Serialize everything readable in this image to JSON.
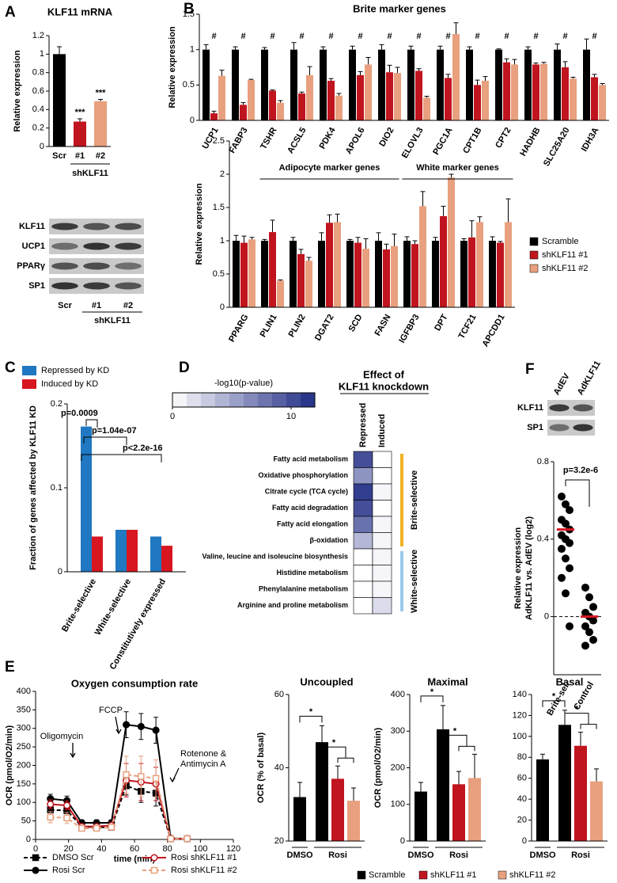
{
  "chart_data": [
    {
      "type": "bar",
      "panel": "A",
      "title": "KLF11 mRNA",
      "ylabel": "Relative expression",
      "categories": [
        "Scr",
        "#1",
        "#2"
      ],
      "values": [
        1.0,
        0.27,
        0.49
      ],
      "errors": [
        0.08,
        0.03,
        0.02
      ],
      "colors": [
        "#000000",
        "#c0141f",
        "#e8a07e"
      ],
      "ylim": [
        0,
        1.2
      ],
      "yticks": [
        0,
        0.2,
        0.4,
        0.6,
        0.8,
        1,
        1.2
      ],
      "sig_label": "***",
      "group_label": "shKLF11"
    },
    {
      "type": "bar",
      "panel": "B",
      "title": "Brite marker genes",
      "ylabel": "Relative expression",
      "categories": [
        "UCP1",
        "FABP3",
        "TSHR",
        "ACSL5",
        "PDK4",
        "APOL6",
        "DIO2",
        "ELOVL3",
        "PGC1A",
        "CPT1B",
        "CPT2",
        "HADHB",
        "SLC25A20",
        "IDH3A"
      ],
      "series": [
        {
          "color": "#000000",
          "values": [
            1,
            1,
            1,
            1,
            1,
            1,
            1,
            1,
            1,
            1,
            1,
            1,
            1,
            1
          ],
          "errors": [
            0.07,
            0.04,
            0.03,
            0.1,
            0.04,
            0.05,
            0.07,
            0.05,
            0.05,
            0.04,
            0.01,
            0.04,
            0.08,
            0.15
          ]
        },
        {
          "color": "#c0141f",
          "values": [
            0.1,
            0.22,
            0.42,
            0.38,
            0.56,
            0.64,
            0.68,
            0.7,
            0.6,
            0.5,
            0.82,
            0.79,
            0.75,
            0.61
          ],
          "errors": [
            0.03,
            0.03,
            0.01,
            0.02,
            0.03,
            0.05,
            0.1,
            0.03,
            0.05,
            0.07,
            0.05,
            0.02,
            0.08,
            0.04
          ]
        },
        {
          "color": "#e8a07e",
          "values": [
            0.63,
            0.57,
            0.25,
            0.64,
            0.35,
            0.79,
            0.67,
            0.32,
            1.22,
            0.56,
            0.79,
            0.8,
            0.59,
            0.5
          ],
          "errors": [
            0.08,
            0.01,
            0.03,
            0.12,
            0.03,
            0.1,
            0.08,
            0.02,
            0.16,
            0.06,
            0.07,
            0.02,
            0.02,
            0.02
          ]
        }
      ],
      "ylim": [
        0,
        1.5
      ],
      "yticks": [
        0,
        0.5,
        1,
        1.5
      ],
      "sig_label": "#"
    },
    {
      "type": "bar",
      "ylabel": "Relative expression",
      "categories": [
        "PPARG",
        "PLIN1",
        "PLIN2",
        "DGAT2",
        "SCD",
        "FASN",
        "IGFBP3",
        "DPT",
        "TCF21",
        "APCDD1"
      ],
      "series": [
        {
          "name": "Scramble",
          "color": "#000000",
          "values": [
            1,
            1,
            1,
            1,
            1,
            1,
            1,
            1,
            1,
            1
          ],
          "errors": [
            0.08,
            0.02,
            0.05,
            0.12,
            0.02,
            0.12,
            0.06,
            0.05,
            0.03,
            0.06
          ]
        },
        {
          "name": "shKLF11 #1",
          "color": "#c0141f",
          "values": [
            0.97,
            1.13,
            0.8,
            1.27,
            0.97,
            0.87,
            0.95,
            1.37,
            1.05,
            0.97
          ],
          "errors": [
            0.1,
            0.18,
            0.07,
            0.12,
            0.08,
            0.08,
            0.05,
            0.15,
            0.25,
            0.02
          ]
        },
        {
          "name": "shKLF11 #2",
          "color": "#e8a07e",
          "values": [
            1.02,
            0.4,
            0.7,
            1.28,
            0.88,
            0.92,
            1.52,
            1.95,
            1.28,
            1.28
          ],
          "errors": [
            0.03,
            0.01,
            0.05,
            0.12,
            0.15,
            0.18,
            0.22,
            0.05,
            0.08,
            0.35
          ]
        }
      ],
      "ylim": [
        0,
        2.5
      ],
      "yticks": [
        0,
        0.5,
        1,
        1.5,
        2,
        2.5
      ],
      "groups": [
        "Adipocyte marker genes",
        "White marker genes"
      ]
    },
    {
      "type": "bar",
      "panel": "C",
      "ylabel": "Fraction of genes affected by KLF11 KD",
      "categories": [
        "Brite-selective",
        "White-selective",
        "Constitutively expressed"
      ],
      "series": [
        {
          "name": "Repressed by KD",
          "color": "#1f78c1",
          "values": [
            0.173,
            0.05,
            0.042
          ]
        },
        {
          "name": "Induced by KD",
          "color": "#d7161f",
          "values": [
            0.042,
            0.05,
            0.031
          ]
        }
      ],
      "ylim": [
        0,
        0.2
      ],
      "yticks": [
        0,
        0.1,
        0.2
      ],
      "annotations": [
        "p=0.0009",
        "p=1.04e-07",
        "p<2.2e-16"
      ]
    },
    {
      "type": "heatmap",
      "panel": "D",
      "title": [
        "Effect of",
        "KLF11 knockdown"
      ],
      "colorbar_label": "-log10(p-value)",
      "rows": [
        "Fatty acid metabolism",
        "Oxidative phosphorylation",
        "Citrate cycle (TCA cycle)",
        "Fatty acid degradation",
        "Fatty acid elongation",
        "β-oxidation",
        "Valine, leucine and isoleucine biosynthesis",
        "Histidine metabolism",
        "Phenylalanine metabolism",
        "Arginine and proline metabolism"
      ],
      "columns": [
        "Repressed",
        "Induced"
      ],
      "values": [
        [
          10,
          0
        ],
        [
          6,
          0
        ],
        [
          11,
          0.5
        ],
        [
          10,
          0
        ],
        [
          8,
          0.5
        ],
        [
          4,
          0.5
        ],
        [
          0,
          0.5
        ],
        [
          0,
          0.5
        ],
        [
          0,
          0.5
        ],
        [
          0,
          2
        ]
      ],
      "clim": [
        0,
        12
      ],
      "cticks": [
        0,
        10
      ],
      "colors": [
        "#ffffff",
        "#1e2b84"
      ],
      "groups": [
        "Brite-selective",
        "White-selective"
      ],
      "group_colors": [
        "#f0b323",
        "#9cc9ec"
      ]
    },
    {
      "type": "strip",
      "panel": "F",
      "ylabel": [
        "Relative expression",
        "AdKLF11 vs. AdEV (log2)"
      ],
      "categories": [
        "Brite-sel.",
        "Control"
      ],
      "values": [
        [
          0.62,
          0.58,
          0.55,
          0.5,
          0.48,
          0.45,
          0.42,
          0.4,
          0.38,
          0.35,
          0.3,
          0.25,
          0.2,
          0.12,
          -0.05
        ],
        [
          0.15,
          0.1,
          0.05,
          0.02,
          0,
          -0.02,
          -0.05,
          -0.08,
          -0.12,
          -0.15
        ]
      ],
      "means": [
        0.45,
        0
      ],
      "mean_color": "#d7161f",
      "ylim": [
        -0.3,
        0.8
      ],
      "yticks": [
        0,
        0.4,
        0.8
      ],
      "pvalue": "p=3.2e-6"
    },
    {
      "type": "line",
      "panel": "E",
      "title": "Oxygen consumption rate",
      "xlabel": "time (min)",
      "ylabel": "OCR (pmol/O2/min)",
      "x": [
        9,
        19,
        28,
        37,
        46,
        55,
        64,
        73,
        82,
        92
      ],
      "series": [
        {
          "name": "DMSO Scr",
          "color": "#000000",
          "dashed": true,
          "marker": "square",
          "filled": true,
          "values": [
            80,
            78,
            35,
            33,
            33,
            145,
            130,
            125,
            2,
            2
          ],
          "errors": [
            15,
            15,
            8,
            8,
            8,
            25,
            30,
            35,
            2,
            2
          ]
        },
        {
          "name": "Rosi Scr",
          "color": "#000000",
          "dashed": false,
          "marker": "circle",
          "filled": true,
          "values": [
            110,
            105,
            45,
            45,
            45,
            310,
            305,
            295,
            3,
            2
          ],
          "errors": [
            12,
            12,
            8,
            8,
            8,
            35,
            35,
            35,
            2,
            2
          ]
        },
        {
          "name": "Rosi shKLF11 #1",
          "color": "#c0141f",
          "dashed": false,
          "marker": "circle",
          "filled": false,
          "values": [
            95,
            92,
            35,
            35,
            38,
            160,
            155,
            150,
            2,
            2
          ],
          "errors": [
            12,
            12,
            6,
            6,
            6,
            45,
            50,
            45,
            2,
            2
          ]
        },
        {
          "name": "Rosi shKLF11 #2",
          "color": "#e8a07e",
          "dashed": true,
          "marker": "square",
          "filled": false,
          "values": [
            60,
            58,
            30,
            30,
            33,
            175,
            170,
            165,
            2,
            2
          ],
          "errors": [
            15,
            15,
            6,
            6,
            6,
            50,
            55,
            50,
            2,
            2
          ]
        }
      ],
      "xlim": [
        0,
        120
      ],
      "xticks": [
        0,
        20,
        40,
        60,
        80,
        100,
        120
      ],
      "ylim": [
        0,
        400
      ],
      "yticks": [
        0,
        50,
        100,
        150,
        200,
        250,
        300,
        350,
        400
      ],
      "annotations": [
        "Oligomycin",
        "FCCP",
        "Rotenone &",
        "Antimycin A"
      ]
    },
    {
      "type": "bar",
      "title": "Uncoupled",
      "ylabel": "OCR (% of basal)",
      "categories": [
        "DMSO",
        "Rosi"
      ],
      "series": [
        {
          "color": "#000000",
          "values": [
            32,
            47
          ],
          "errors": [
            4,
            4.5
          ]
        },
        {
          "color": "#c0141f",
          "values": [
            null,
            37
          ],
          "errors": [
            null,
            3.5
          ]
        },
        {
          "color": "#e8a07e",
          "values": [
            null,
            31
          ],
          "errors": [
            null,
            3.5
          ]
        }
      ],
      "ylim": [
        20,
        60
      ],
      "yticks": [
        20,
        40,
        60
      ],
      "sig_label": "*"
    },
    {
      "type": "bar",
      "title": "Maximal",
      "ylabel": "OCR (pmol/O2/min)",
      "categories": [
        "DMSO",
        "Rosi"
      ],
      "series": [
        {
          "color": "#000000",
          "values": [
            135,
            305
          ],
          "errors": [
            25,
            65
          ]
        },
        {
          "color": "#c0141f",
          "values": [
            null,
            155
          ],
          "errors": [
            null,
            35
          ]
        },
        {
          "color": "#e8a07e",
          "values": [
            null,
            172
          ],
          "errors": [
            null,
            65
          ]
        }
      ],
      "ylim": [
        0,
        400
      ],
      "yticks": [
        0,
        100,
        200,
        300,
        400
      ],
      "sig_label": "*"
    },
    {
      "type": "bar",
      "title": "Basal",
      "categories": [
        "DMSO",
        "Rosi"
      ],
      "series": [
        {
          "name": "Scramble",
          "color": "#000000",
          "values": [
            78,
            111
          ],
          "errors": [
            5,
            14
          ]
        },
        {
          "name": "shKLF11 #1",
          "color": "#c0141f",
          "values": [
            null,
            91
          ],
          "errors": [
            null,
            13
          ]
        },
        {
          "name": "shKLF11 #2",
          "color": "#e8a07e",
          "values": [
            null,
            57
          ],
          "errors": [
            null,
            12
          ]
        }
      ],
      "ylim": [
        0,
        140
      ],
      "yticks": [
        0,
        20,
        40,
        60,
        80,
        100,
        120,
        140
      ],
      "sig_label": "*"
    }
  ],
  "blots": [
    {
      "rows": [
        "KLF11",
        "UCP1",
        "PPARγ",
        "SP1"
      ],
      "lanes": [
        "Scr",
        "#1",
        "#2"
      ],
      "group": "shKLF11"
    },
    {
      "rows": [
        "KLF11",
        "SP1"
      ],
      "lanes": [
        "AdEV",
        "AdKLF11"
      ]
    }
  ]
}
